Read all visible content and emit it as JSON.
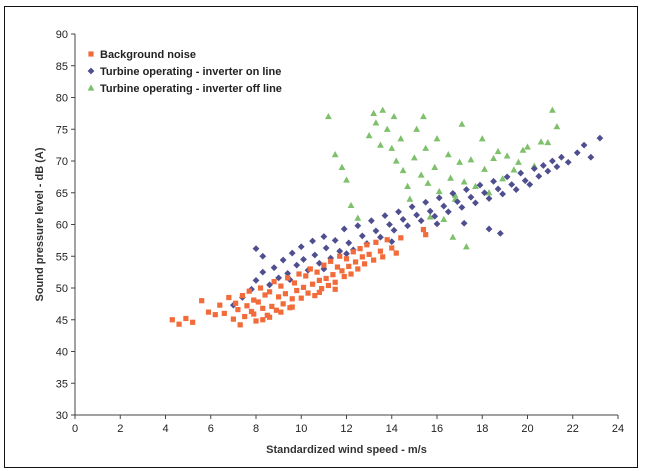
{
  "chart_data": {
    "type": "scatter",
    "xlabel": "Standardized wind speed - m/s",
    "ylabel": "Sound pressure level - dB (A)",
    "xlim": [
      0,
      24
    ],
    "ylim": [
      30,
      90
    ],
    "xticks": [
      "0",
      "2",
      "4",
      "6",
      "8",
      "10",
      "12",
      "14",
      "16",
      "18",
      "20",
      "22",
      "24"
    ],
    "yticks": [
      "30",
      "35",
      "40",
      "45",
      "50",
      "55",
      "60",
      "65",
      "70",
      "75",
      "80",
      "85",
      "90"
    ],
    "grid": false,
    "legend_position": "top-left",
    "series": [
      {
        "name": "Background noise",
        "marker": "square",
        "color": "#f26b3a",
        "points": [
          [
            4.3,
            45
          ],
          [
            4.6,
            44.3
          ],
          [
            4.9,
            45.2
          ],
          [
            5.2,
            44.6
          ],
          [
            5.6,
            48
          ],
          [
            5.9,
            46.2
          ],
          [
            6.2,
            45.8
          ],
          [
            6.4,
            47.3
          ],
          [
            6.6,
            46
          ],
          [
            6.8,
            48.5
          ],
          [
            7.0,
            45.1
          ],
          [
            7.1,
            47.6
          ],
          [
            7.2,
            46.6
          ],
          [
            7.4,
            48.8
          ],
          [
            7.5,
            45.5
          ],
          [
            7.6,
            47.2
          ],
          [
            7.7,
            49.5
          ],
          [
            7.8,
            46.3
          ],
          [
            7.9,
            48.1
          ],
          [
            8.0,
            44.8
          ],
          [
            8.1,
            47.8
          ],
          [
            8.2,
            50
          ],
          [
            8.3,
            46.8
          ],
          [
            8.4,
            48.9
          ],
          [
            8.5,
            45.7
          ],
          [
            8.6,
            49.4
          ],
          [
            8.7,
            47.1
          ],
          [
            8.8,
            51
          ],
          [
            8.9,
            46.5
          ],
          [
            9.0,
            48.6
          ],
          [
            9.1,
            50.3
          ],
          [
            9.2,
            47.5
          ],
          [
            9.3,
            49.1
          ],
          [
            9.4,
            51.6
          ],
          [
            9.5,
            46.9
          ],
          [
            9.6,
            48.3
          ],
          [
            9.7,
            50.8
          ],
          [
            9.8,
            49.6
          ],
          [
            9.9,
            52.2
          ],
          [
            10.0,
            48.4
          ],
          [
            10.1,
            50.1
          ],
          [
            10.2,
            51.9
          ],
          [
            10.3,
            49.2
          ],
          [
            10.4,
            53
          ],
          [
            10.5,
            50.6
          ],
          [
            10.6,
            48.8
          ],
          [
            10.7,
            52.5
          ],
          [
            10.8,
            51.2
          ],
          [
            10.9,
            49.9
          ],
          [
            11.0,
            53.6
          ],
          [
            11.1,
            51.5
          ],
          [
            11.2,
            50.4
          ],
          [
            11.3,
            54.2
          ],
          [
            11.4,
            52.1
          ],
          [
            11.5,
            50.9
          ],
          [
            11.6,
            53.3
          ],
          [
            11.7,
            55
          ],
          [
            11.8,
            52.7
          ],
          [
            11.9,
            51.8
          ],
          [
            12.0,
            54.6
          ],
          [
            12.1,
            53.4
          ],
          [
            12.2,
            52.2
          ],
          [
            12.3,
            55.7
          ],
          [
            12.4,
            54.1
          ],
          [
            12.5,
            53
          ],
          [
            12.6,
            56.2
          ],
          [
            12.7,
            54.9
          ],
          [
            12.8,
            53.8
          ],
          [
            12.9,
            56.8
          ],
          [
            13.0,
            55.3
          ],
          [
            13.2,
            54.4
          ],
          [
            13.3,
            57.2
          ],
          [
            13.5,
            55.8
          ],
          [
            13.6,
            54.9
          ],
          [
            13.8,
            57.6
          ],
          [
            14.0,
            56.3
          ],
          [
            14.2,
            55.5
          ],
          [
            14.4,
            57.9
          ],
          [
            15.4,
            59.2
          ],
          [
            15.5,
            58.4
          ],
          [
            8.3,
            45
          ],
          [
            8.6,
            45.4
          ],
          [
            9.1,
            46.2
          ],
          [
            9.6,
            47
          ],
          [
            7.3,
            44.2
          ],
          [
            7.9,
            45.9
          ],
          [
            10.8,
            49.3
          ],
          [
            11.5,
            49.8
          ]
        ]
      },
      {
        "name": "Turbine operating - inverter on line",
        "marker": "diamond",
        "color": "#4f4f8f",
        "points": [
          [
            7.0,
            47.3
          ],
          [
            7.4,
            48.5
          ],
          [
            7.8,
            49.8
          ],
          [
            8.0,
            51.2
          ],
          [
            8.3,
            52.5
          ],
          [
            8.0,
            56.2
          ],
          [
            8.3,
            55
          ],
          [
            8.6,
            50.5
          ],
          [
            8.8,
            53.2
          ],
          [
            9.0,
            51.6
          ],
          [
            9.2,
            54.4
          ],
          [
            9.4,
            52.3
          ],
          [
            9.6,
            55.5
          ],
          [
            9.8,
            53.6
          ],
          [
            10.0,
            56.5
          ],
          [
            10.1,
            54.5
          ],
          [
            10.3,
            52.8
          ],
          [
            10.5,
            57.4
          ],
          [
            10.6,
            55.2
          ],
          [
            10.8,
            53.9
          ],
          [
            11.0,
            58.1
          ],
          [
            11.1,
            56.3
          ],
          [
            11.3,
            54.7
          ],
          [
            11.5,
            57.5
          ],
          [
            11.7,
            55.8
          ],
          [
            11.9,
            59.3
          ],
          [
            12.1,
            57.1
          ],
          [
            12.3,
            56
          ],
          [
            12.5,
            59.8
          ],
          [
            12.7,
            58.2
          ],
          [
            12.9,
            57
          ],
          [
            13.1,
            60.6
          ],
          [
            13.3,
            59
          ],
          [
            13.5,
            58
          ],
          [
            13.7,
            61.4
          ],
          [
            13.9,
            60
          ],
          [
            14.1,
            59.1
          ],
          [
            14.3,
            62
          ],
          [
            14.5,
            60.8
          ],
          [
            14.7,
            59.8
          ],
          [
            14.9,
            62.8
          ],
          [
            15.1,
            61.5
          ],
          [
            15.3,
            60.6
          ],
          [
            15.5,
            63.5
          ],
          [
            15.7,
            62.1
          ],
          [
            15.9,
            61.3
          ],
          [
            16.1,
            64.2
          ],
          [
            16.3,
            62.9
          ],
          [
            16.5,
            62
          ],
          [
            16.7,
            64.9
          ],
          [
            16.9,
            63.6
          ],
          [
            17.1,
            62.7
          ],
          [
            17.3,
            65.5
          ],
          [
            17.5,
            64.3
          ],
          [
            17.7,
            63.4
          ],
          [
            17.9,
            66.2
          ],
          [
            18.1,
            65
          ],
          [
            18.3,
            64.1
          ],
          [
            18.5,
            66.8
          ],
          [
            18.7,
            65.6
          ],
          [
            18.9,
            64.8
          ],
          [
            19.1,
            67.5
          ],
          [
            19.3,
            66.3
          ],
          [
            19.5,
            65.5
          ],
          [
            19.7,
            68.1
          ],
          [
            19.9,
            66.9
          ],
          [
            20.1,
            66.3
          ],
          [
            20.3,
            68.8
          ],
          [
            20.5,
            67.6
          ],
          [
            20.7,
            69.3
          ],
          [
            20.9,
            68.4
          ],
          [
            21.1,
            70
          ],
          [
            21.3,
            69.1
          ],
          [
            21.5,
            70.6
          ],
          [
            21.8,
            69.8
          ],
          [
            22.2,
            71.3
          ],
          [
            22.5,
            72.5
          ],
          [
            22.8,
            70.6
          ],
          [
            23.2,
            73.6
          ],
          [
            11.0,
            53
          ],
          [
            12.0,
            55.4
          ],
          [
            9.5,
            51.3
          ],
          [
            17.2,
            60.2
          ],
          [
            18.3,
            59.3
          ],
          [
            18.8,
            58.6
          ],
          [
            16.0,
            60.1
          ],
          [
            14.0,
            57.3
          ]
        ]
      },
      {
        "name": "Turbine operating - inverter off line",
        "marker": "triangle",
        "color": "#7ec06b",
        "points": [
          [
            11.2,
            77
          ],
          [
            11.5,
            71
          ],
          [
            11.8,
            69
          ],
          [
            12.0,
            67
          ],
          [
            12.2,
            63
          ],
          [
            12.5,
            61
          ],
          [
            13.0,
            74
          ],
          [
            13.2,
            77.5
          ],
          [
            13.3,
            76
          ],
          [
            13.5,
            72.5
          ],
          [
            13.6,
            78
          ],
          [
            13.8,
            75
          ],
          [
            14.0,
            72
          ],
          [
            14.1,
            77
          ],
          [
            14.2,
            70
          ],
          [
            14.4,
            73.5
          ],
          [
            14.5,
            68.5
          ],
          [
            14.7,
            66
          ],
          [
            14.8,
            64
          ],
          [
            15.0,
            70.5
          ],
          [
            15.1,
            75
          ],
          [
            15.3,
            67.8
          ],
          [
            15.5,
            72
          ],
          [
            15.6,
            66.5
          ],
          [
            15.7,
            61.2
          ],
          [
            15.9,
            69
          ],
          [
            16.0,
            73.5
          ],
          [
            16.1,
            65.2
          ],
          [
            16.3,
            60.8
          ],
          [
            16.5,
            71
          ],
          [
            16.6,
            67.3
          ],
          [
            16.7,
            58
          ],
          [
            16.8,
            64
          ],
          [
            17.0,
            69.8
          ],
          [
            17.1,
            75.8
          ],
          [
            17.2,
            66.7
          ],
          [
            17.3,
            56.5
          ],
          [
            17.5,
            70.2
          ],
          [
            17.7,
            66
          ],
          [
            18.0,
            73.5
          ],
          [
            18.1,
            68.7
          ],
          [
            18.3,
            65
          ],
          [
            18.5,
            70.4
          ],
          [
            18.7,
            71.5
          ],
          [
            18.9,
            67.2
          ],
          [
            19.1,
            70.8
          ],
          [
            19.4,
            68.6
          ],
          [
            19.6,
            69.8
          ],
          [
            19.8,
            71.7
          ],
          [
            20.0,
            72.2
          ],
          [
            20.3,
            69.2
          ],
          [
            20.6,
            73
          ],
          [
            20.9,
            72.9
          ],
          [
            21.1,
            78
          ],
          [
            21.3,
            75.4
          ],
          [
            16.8,
            64.6
          ],
          [
            15.4,
            77
          ]
        ]
      }
    ]
  }
}
